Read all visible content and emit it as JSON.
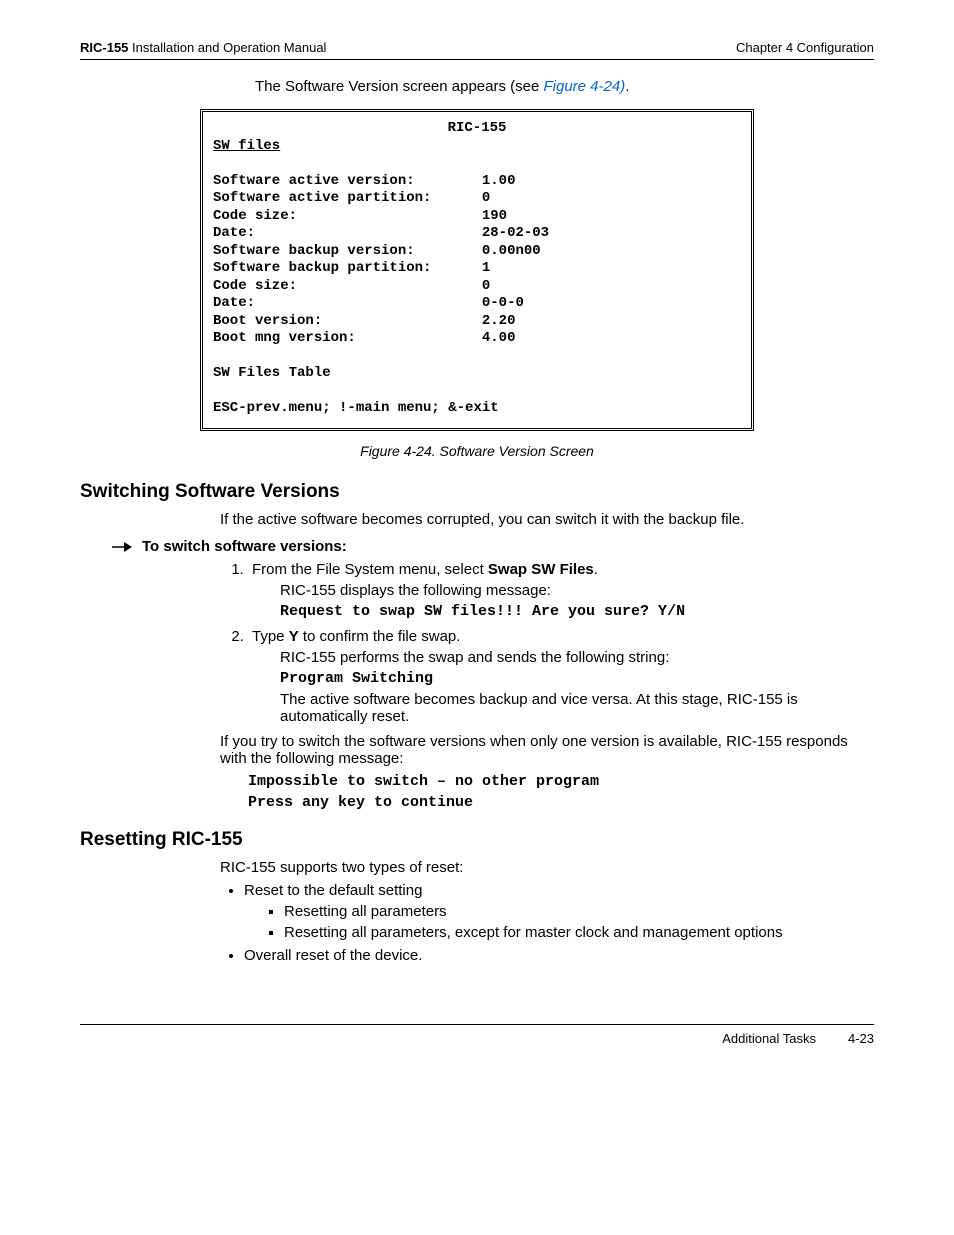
{
  "header": {
    "product": "RIC-155",
    "manual": " Installation and Operation Manual",
    "chapter": "Chapter 4  Configuration"
  },
  "intro": {
    "text_before": "The Software Version screen appears (see ",
    "link": "Figure 4-24)",
    "text_after": "."
  },
  "codebox": {
    "title": "RIC-155",
    "subtitle": "SW files",
    "rows": [
      {
        "label": "Software active version:",
        "value": "1.00"
      },
      {
        "label": "Software active partition:",
        "value": "0"
      },
      {
        "label": "Code size:",
        "value": "190"
      },
      {
        "label": "Date:",
        "value": "28-02-03"
      },
      {
        "label": "Software backup version:",
        "value": "0.00n00"
      },
      {
        "label": "Software backup partition:",
        "value": "1"
      },
      {
        "label": "Code size:",
        "value": "0"
      },
      {
        "label": "Date:",
        "value": "0-0-0"
      },
      {
        "label": "Boot version:",
        "value": "2.20"
      },
      {
        "label": "Boot mng version:",
        "value": "4.00"
      }
    ],
    "table_line": "SW Files Table",
    "nav_line": "ESC-prev.menu; !-main menu; &-exit"
  },
  "figure_caption": "Figure 4-24.  Software Version Screen",
  "section1": {
    "title": "Switching Software Versions",
    "intro": "If the active software becomes corrupted, you can switch it with the backup file.",
    "proc_title": "To switch software versions:",
    "step1_a": "From the File System menu, select ",
    "step1_bold": "Swap SW Files",
    "step1_b": ".",
    "step1_sub": "RIC-155 displays the following message:",
    "step1_code": "Request to swap SW files!!! Are you sure? Y/N",
    "step2_a": "Type ",
    "step2_bold": "Y",
    "step2_b": " to confirm the file swap.",
    "step2_sub1": "RIC-155 performs the swap and sends the following string:",
    "step2_code": "Program Switching",
    "step2_sub2": "The active software becomes backup and vice versa. At this stage, RIC-155 is automatically reset.",
    "para2": "If you try to switch the software versions when only one version is available, RIC-155 responds with the following message:",
    "code1": "Impossible to switch – no other program",
    "code2": "Press any key to continue"
  },
  "section2": {
    "title": "Resetting RIC-155",
    "intro": "RIC-155 supports two types of reset:",
    "bullet1": "Reset to the default setting",
    "sub1": "Resetting all parameters",
    "sub2": "Resetting all parameters, except for master clock and management options",
    "bullet2": "Overall reset of the device."
  },
  "footer": {
    "section": "Additional Tasks",
    "page": "4-23"
  }
}
